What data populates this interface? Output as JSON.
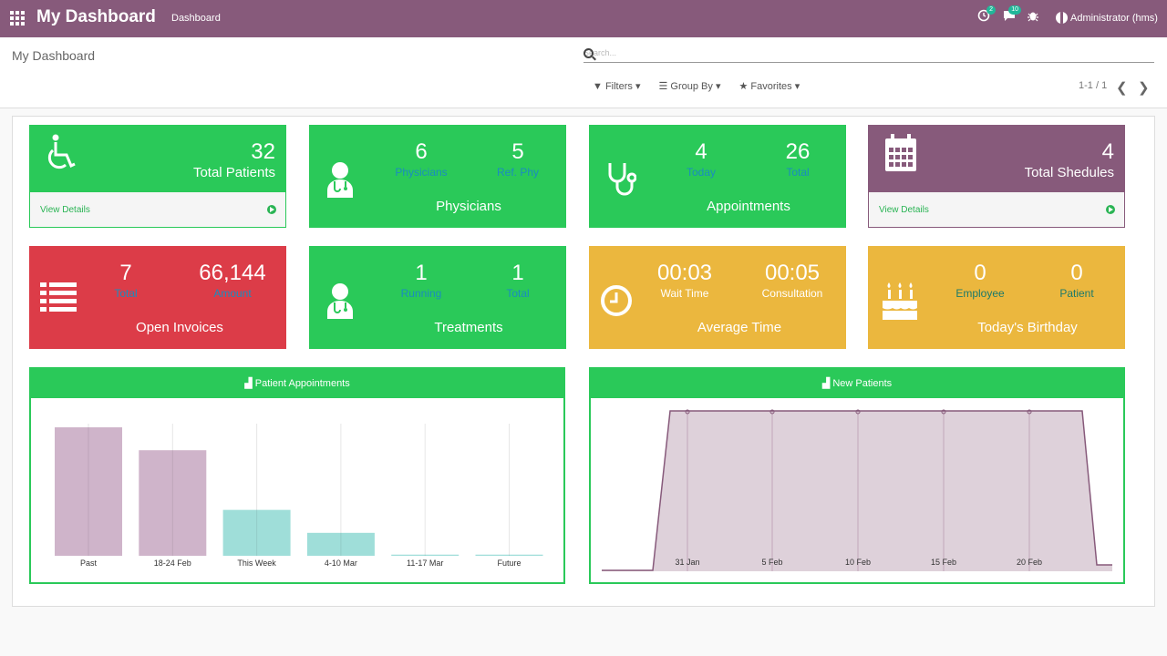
{
  "topbar": {
    "brand": "My Dashboard",
    "menu": "Dashboard",
    "activity_count": "2",
    "messages_count": "10",
    "user": "Administrator (hms)"
  },
  "control": {
    "breadcrumb": "My Dashboard",
    "search_placeholder": "Search...",
    "filters": "Filters",
    "group_by": "Group By",
    "favorites": "Favorites",
    "pager": "1-1 / 1"
  },
  "cards": {
    "patients": {
      "value": "32",
      "label": "Total Patients",
      "footer": "View Details"
    },
    "physicians": {
      "v1": "6",
      "l1": "Physicians",
      "v2": "5",
      "l2": "Ref. Phy",
      "caption": "Physicians"
    },
    "appointments": {
      "v1": "4",
      "l1": "Today",
      "v2": "26",
      "l2": "Total",
      "caption": "Appointments"
    },
    "schedules": {
      "value": "4",
      "label": "Total Shedules",
      "footer": "View Details"
    },
    "invoices": {
      "v1": "7",
      "l1": "Total",
      "v2": "66,144",
      "l2": "Amount",
      "caption": "Open Invoices"
    },
    "treatments": {
      "v1": "1",
      "l1": "Running",
      "v2": "1",
      "l2": "Total",
      "caption": "Treatments"
    },
    "avgtime": {
      "v1": "00:03",
      "l1": "Wait Time",
      "v2": "00:05",
      "l2": "Consultation",
      "caption": "Average Time"
    },
    "birthday": {
      "v1": "0",
      "l1": "Employee",
      "v2": "0",
      "l2": "Patient",
      "caption": "Today's Birthday"
    }
  },
  "colors": {
    "brand": "#875a7b",
    "green": "#2ac959",
    "red": "#dc3c48",
    "yellow": "#ebb73e"
  },
  "chart_data": [
    {
      "type": "bar",
      "title": "Patient Appointments",
      "categories": [
        "Past",
        "18-24 Feb",
        "This Week",
        "4-10 Mar",
        "11-17 Mar",
        "Future"
      ],
      "values": [
        5.6,
        4.6,
        2.0,
        1.0,
        0.05,
        0.05
      ],
      "colors": [
        "#cfb4ca",
        "#cfb4ca",
        "#9fded9",
        "#9fded9",
        "#9fded9",
        "#9fded9"
      ],
      "grid": true
    },
    {
      "type": "area",
      "title": "New Patients",
      "x": [
        "",
        "31 Jan",
        "5 Feb",
        "10 Feb",
        "15 Feb",
        "20 Feb",
        ""
      ],
      "values": [
        0,
        1,
        1,
        1,
        1,
        1,
        0
      ],
      "grid": true
    }
  ]
}
